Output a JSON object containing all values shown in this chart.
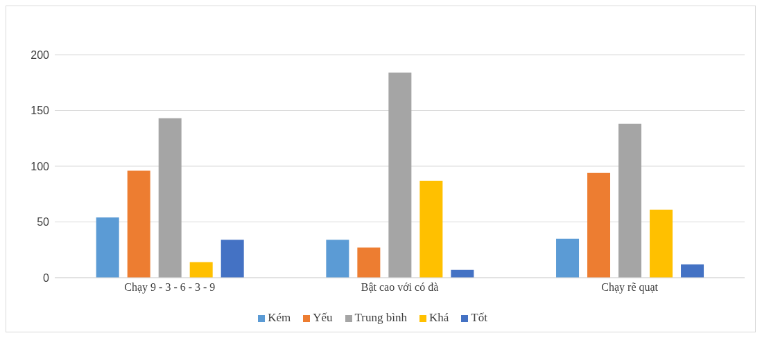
{
  "chart_data": {
    "type": "bar",
    "categories": [
      "Chạy 9 - 3 - 6 - 3 - 9",
      "Bật cao với có đà",
      "Chạy rẽ quạt"
    ],
    "series": [
      {
        "name": "Kém",
        "color": "#5b9bd5",
        "values": [
          54,
          34,
          35
        ]
      },
      {
        "name": "Yếu",
        "color": "#ed7d31",
        "values": [
          96,
          27,
          94
        ]
      },
      {
        "name": "Trung bình",
        "color": "#a5a5a5",
        "values": [
          143,
          184,
          138
        ]
      },
      {
        "name": "Khá",
        "color": "#ffc000",
        "values": [
          14,
          87,
          61
        ]
      },
      {
        "name": "Tốt",
        "color": "#4472c4",
        "values": [
          34,
          7,
          12
        ]
      }
    ],
    "ylim": [
      0,
      200
    ],
    "yticks": [
      0,
      50,
      100,
      150,
      200
    ],
    "grid": "y",
    "legend": "bottom"
  }
}
